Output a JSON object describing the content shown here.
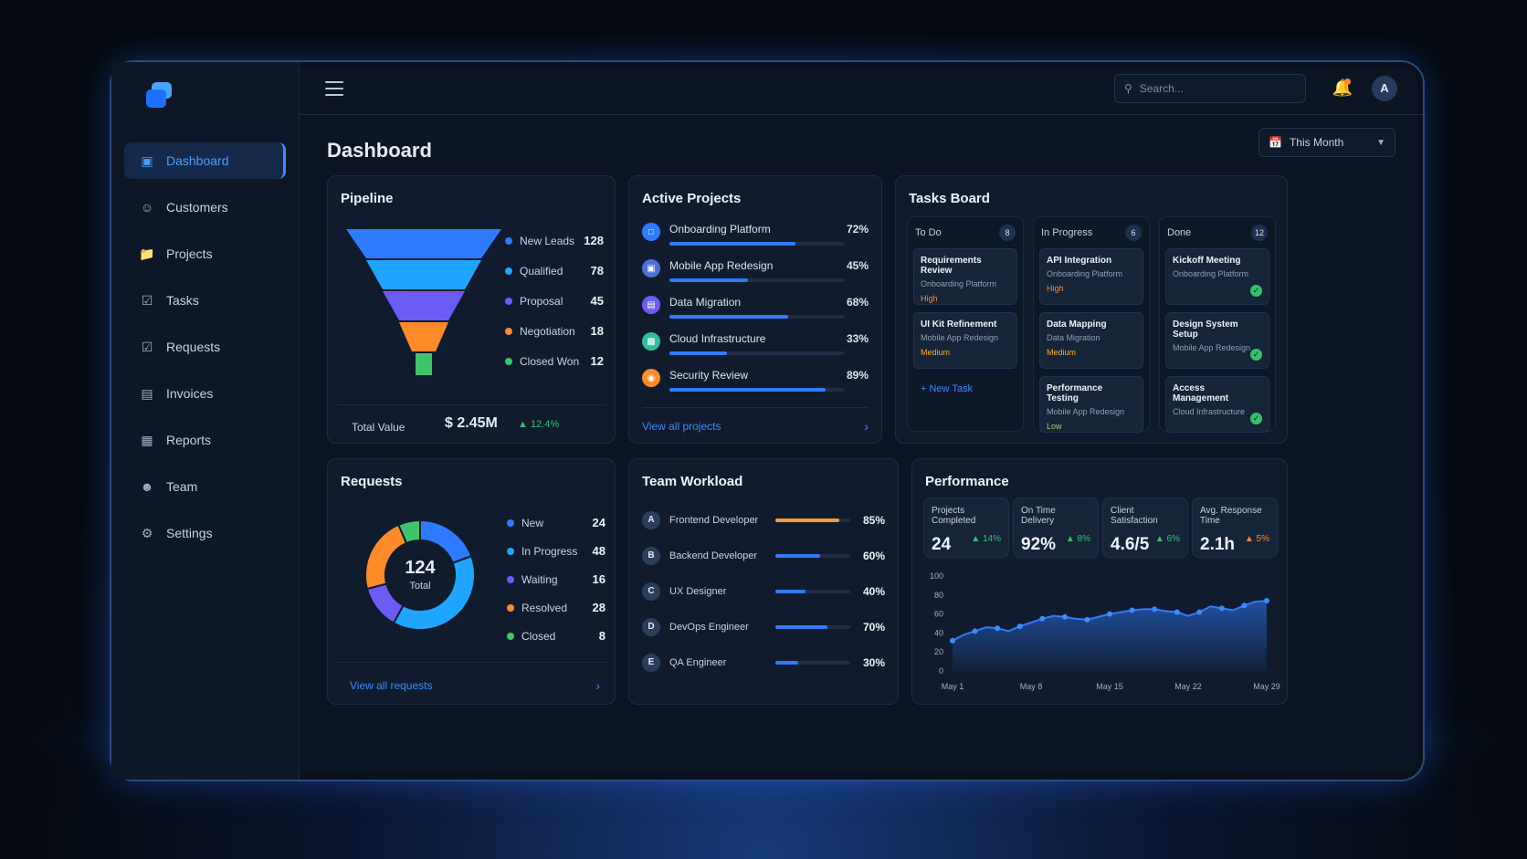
{
  "nav": {
    "items": [
      {
        "label": "Dashboard",
        "icon": "dashboard-icon",
        "active": true
      },
      {
        "label": "Customers",
        "icon": "user-icon"
      },
      {
        "label": "Projects",
        "icon": "folder-icon"
      },
      {
        "label": "Tasks",
        "icon": "checkbox-icon"
      },
      {
        "label": "Requests",
        "icon": "checkbox-icon"
      },
      {
        "label": "Invoices",
        "icon": "document-icon"
      },
      {
        "label": "Reports",
        "icon": "chart-icon"
      },
      {
        "label": "Team",
        "icon": "team-icon"
      },
      {
        "label": "Settings",
        "icon": "gear-icon"
      }
    ]
  },
  "topbar": {
    "search_placeholder": "Search...",
    "avatar_initial": "A"
  },
  "page": {
    "title": "Dashboard",
    "period": "This Month"
  },
  "pipeline": {
    "title": "Pipeline",
    "stages": [
      {
        "label": "New Leads",
        "value": "128",
        "color": "#2f7bff"
      },
      {
        "label": "Qualified",
        "value": "78",
        "color": "#1fa4ff"
      },
      {
        "label": "Proposal",
        "value": "45",
        "color": "#6c5cf5"
      },
      {
        "label": "Negotiation",
        "value": "18",
        "color": "#ff8a2a"
      },
      {
        "label": "Closed Won",
        "value": "12",
        "color": "#3fc46c"
      }
    ],
    "total_label": "Total Value",
    "total_value": "$ 2.45M",
    "total_change": "▲ 12.4%"
  },
  "projects": {
    "title": "Active Projects",
    "items": [
      {
        "name": "Onboarding Platform",
        "pct": "72%",
        "progress": 0.72,
        "color": "#2f7bff"
      },
      {
        "name": "Mobile App Redesign",
        "pct": "45%",
        "progress": 0.45,
        "color": "#4c6fd8"
      },
      {
        "name": "Data Migration",
        "pct": "68%",
        "progress": 0.68,
        "color": "#6c5cf5"
      },
      {
        "name": "Cloud Infrastructure",
        "pct": "33%",
        "progress": 0.33,
        "color": "#2fbf9a"
      },
      {
        "name": "Security Review",
        "pct": "89%",
        "progress": 0.89,
        "color": "#ff8a2a"
      }
    ],
    "link": "View all projects"
  },
  "tasks": {
    "title": "Tasks Board",
    "columns": [
      {
        "name": "To Do",
        "count": "8",
        "cards": [
          {
            "title": "Requirements Review",
            "project": "Onboarding Platform",
            "priority": "High",
            "pcolor": "#ff8a2a"
          },
          {
            "title": "UI Kit Refinement",
            "project": "Mobile App Redesign",
            "priority": "Medium",
            "pcolor": "#ffb020"
          }
        ],
        "new_task": "+ New Task"
      },
      {
        "name": "In Progress",
        "count": "6",
        "cards": [
          {
            "title": "API Integration",
            "project": "Onboarding Platform",
            "priority": "High",
            "pcolor": "#ff8a2a"
          },
          {
            "title": "Data Mapping",
            "project": "Data Migration",
            "priority": "Medium",
            "pcolor": "#ffb020"
          },
          {
            "title": "Performance Testing",
            "project": "Mobile App Redesign",
            "priority": "Low",
            "pcolor": "#9fd36b"
          }
        ]
      },
      {
        "name": "Done",
        "count": "12",
        "cards": [
          {
            "title": "Kickoff Meeting",
            "project": "Onboarding Platform"
          },
          {
            "title": "Design System Setup",
            "project": "Mobile App Redesign"
          },
          {
            "title": "Access Management",
            "project": "Cloud Infrastructure"
          }
        ]
      }
    ]
  },
  "requests": {
    "title": "Requests",
    "total": "124",
    "total_label": "Total",
    "items": [
      {
        "label": "New",
        "value": "24",
        "count": 24,
        "color": "#2f7bff"
      },
      {
        "label": "In Progress",
        "value": "48",
        "count": 48,
        "color": "#1fa4ff"
      },
      {
        "label": "Waiting",
        "value": "16",
        "count": 16,
        "color": "#6c5cf5"
      },
      {
        "label": "Resolved",
        "value": "28",
        "count": 28,
        "color": "#ff8a2a"
      },
      {
        "label": "Closed",
        "value": "8",
        "count": 8,
        "color": "#3fc46c"
      }
    ],
    "link": "View all requests"
  },
  "workload": {
    "title": "Team Workload",
    "items": [
      {
        "initial": "A",
        "role": "Frontend Developer",
        "pct": "85%",
        "level": 0.85,
        "color": "#ff9a3c"
      },
      {
        "initial": "B",
        "role": "Backend Developer",
        "pct": "60%",
        "level": 0.6,
        "color": "#2f7bff"
      },
      {
        "initial": "C",
        "role": "UX Designer",
        "pct": "40%",
        "level": 0.4,
        "color": "#2f7bff"
      },
      {
        "initial": "D",
        "role": "DevOps Engineer",
        "pct": "70%",
        "level": 0.7,
        "color": "#2f7bff"
      },
      {
        "initial": "E",
        "role": "QA Engineer",
        "pct": "30%",
        "level": 0.3,
        "color": "#2f7bff"
      }
    ]
  },
  "performance": {
    "title": "Performance",
    "kpis": [
      {
        "label": "Projects Completed",
        "value": "24",
        "delta": "▲ 14%",
        "trend": "up"
      },
      {
        "label": "On Time Delivery",
        "value": "92%",
        "delta": "▲ 8%",
        "trend": "up"
      },
      {
        "label": "Client Satisfaction",
        "value": "4.6/5",
        "delta": "▲ 6%",
        "trend": "up"
      },
      {
        "label": "Avg. Response Time",
        "value": "2.1h",
        "delta": "▲ 5%",
        "trend": "down"
      }
    ]
  },
  "chart_data": {
    "type": "area",
    "x_ticks": [
      "May 1",
      "May 8",
      "May 15",
      "May 22",
      "May 29"
    ],
    "y_ticks": [
      "100",
      "80",
      "60",
      "40",
      "20",
      "0"
    ],
    "ylim": [
      0,
      100
    ],
    "grid": false,
    "x": [
      1,
      2,
      3,
      4,
      5,
      6,
      7,
      8,
      9,
      10,
      11,
      12,
      13,
      14,
      15,
      16,
      17,
      18,
      19,
      20,
      21,
      22,
      23,
      24,
      25,
      26,
      27,
      28,
      29
    ],
    "values": [
      32,
      38,
      42,
      46,
      45,
      42,
      47,
      51,
      55,
      58,
      57,
      55,
      54,
      57,
      60,
      62,
      64,
      65,
      65,
      63,
      62,
      58,
      62,
      68,
      66,
      64,
      69,
      73,
      74
    ],
    "marker_every": 2,
    "color": "#2f7bff"
  }
}
